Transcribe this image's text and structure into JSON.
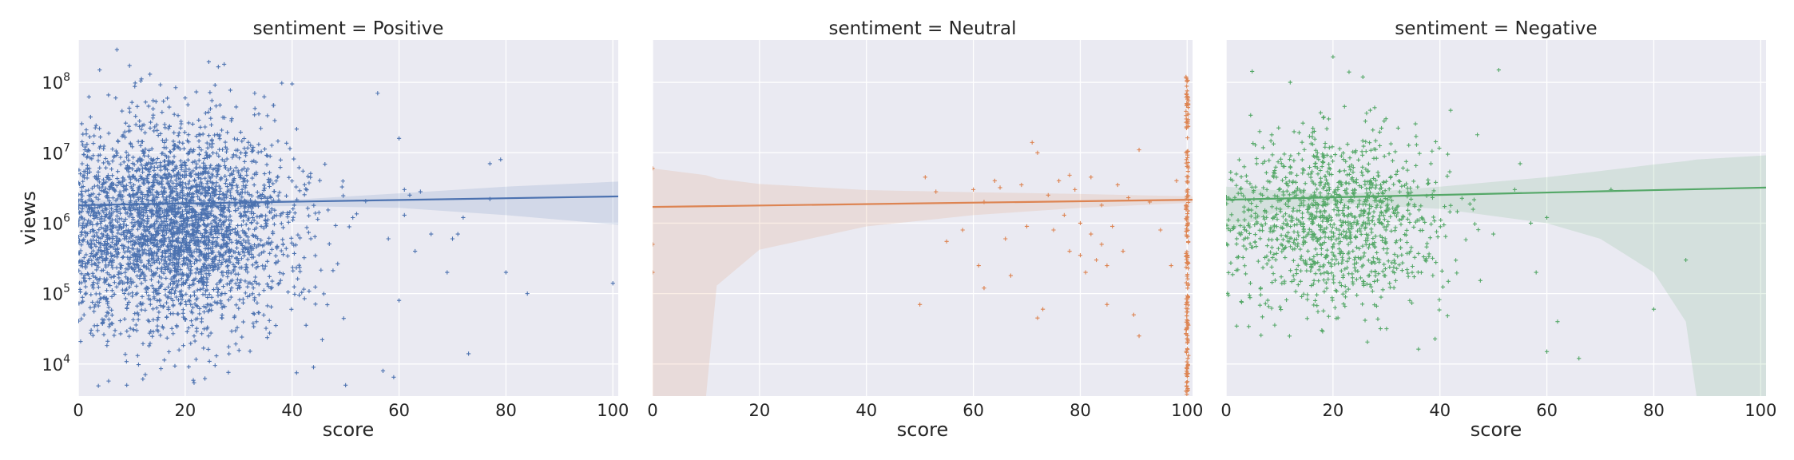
{
  "chart_data": {
    "type": "scatter",
    "style": "seaborn-darkgrid lmplot facets, plus-sign markers with linear regression line and confidence band",
    "xlabel": "score",
    "ylabel": "views",
    "xlim": [
      0,
      101
    ],
    "ylim": [
      3500,
      400000000
    ],
    "yscale": "log",
    "xticks": [
      0,
      20,
      40,
      60,
      80,
      100
    ],
    "xtick_labels": [
      "0",
      "20",
      "40",
      "60",
      "80",
      "100"
    ],
    "yticks": [
      {
        "value": 10000,
        "base": "10",
        "exp": "4"
      },
      {
        "value": 100000,
        "base": "10",
        "exp": "5"
      },
      {
        "value": 1000000,
        "base": "10",
        "exp": "6"
      },
      {
        "value": 10000000,
        "base": "10",
        "exp": "7"
      },
      {
        "value": 100000000,
        "base": "10",
        "exp": "8"
      }
    ],
    "grid": true,
    "colors": {
      "background": "#EAEAF2",
      "grid": "#FFFFFF",
      "Positive": "#4C72B0",
      "Neutral": "#DD8452",
      "Negative": "#55A868"
    },
    "panels": [
      {
        "title": "sentiment = Positive",
        "series": "Positive",
        "color": "#4C72B0",
        "regression": [
          {
            "x": 0,
            "y": 1800000
          },
          {
            "x": 101,
            "y": 2400000
          }
        ],
        "ci_band": [
          {
            "x": 0,
            "lo": 1500000,
            "hi": 2150000
          },
          {
            "x": 20,
            "lo": 1680000,
            "hi": 2020000
          },
          {
            "x": 40,
            "lo": 1750000,
            "hi": 2150000
          },
          {
            "x": 60,
            "lo": 1650000,
            "hi": 2650000
          },
          {
            "x": 80,
            "lo": 1300000,
            "hi": 3300000
          },
          {
            "x": 101,
            "lo": 950000,
            "hi": 3900000
          }
        ],
        "cloud": {
          "count": 3200,
          "x_center": 18,
          "x_spread": 11,
          "x_min": 0,
          "x_max": 56,
          "log_y_center": 5.95,
          "log_y_spread": 0.72
        },
        "points": [
          {
            "x": 4,
            "y": 150000000
          },
          {
            "x": 7,
            "y": 60000000
          },
          {
            "x": 14,
            "y": 55000000
          },
          {
            "x": 20,
            "y": 60000000
          },
          {
            "x": 25,
            "y": 55000000
          },
          {
            "x": 33,
            "y": 70000000
          },
          {
            "x": 40,
            "y": 95000000
          },
          {
            "x": 56,
            "y": 70000000
          },
          {
            "x": 60,
            "y": 16000000
          },
          {
            "x": 61,
            "y": 3000000
          },
          {
            "x": 62,
            "y": 2500000
          },
          {
            "x": 64,
            "y": 2800000
          },
          {
            "x": 66,
            "y": 700000
          },
          {
            "x": 69,
            "y": 200000
          },
          {
            "x": 70,
            "y": 600000
          },
          {
            "x": 71,
            "y": 700000
          },
          {
            "x": 72,
            "y": 1200000
          },
          {
            "x": 73,
            "y": 14000
          },
          {
            "x": 77,
            "y": 7000000
          },
          {
            "x": 77,
            "y": 2200000
          },
          {
            "x": 79,
            "y": 8000000
          },
          {
            "x": 80,
            "y": 200000
          },
          {
            "x": 84,
            "y": 100000
          },
          {
            "x": 100,
            "y": 140000
          },
          {
            "x": 57,
            "y": 8000
          },
          {
            "x": 59,
            "y": 6500
          },
          {
            "x": 50,
            "y": 5000
          },
          {
            "x": 44,
            "y": 9000
          },
          {
            "x": 58,
            "y": 600000
          },
          {
            "x": 60,
            "y": 80000
          },
          {
            "x": 63,
            "y": 400000
          },
          {
            "x": 61,
            "y": 1300000
          }
        ]
      },
      {
        "title": "sentiment = Neutral",
        "series": "Neutral",
        "color": "#DD8452",
        "regression": [
          {
            "x": 0,
            "y": 1700000
          },
          {
            "x": 101,
            "y": 2150000
          }
        ],
        "ci_band": [
          {
            "x": 0,
            "lo": 3500,
            "hi": 6000000
          },
          {
            "x": 10,
            "lo": 3500,
            "hi": 4800000
          },
          {
            "x": 12,
            "lo": 130000,
            "hi": 4300000
          },
          {
            "x": 20,
            "lo": 420000,
            "hi": 3600000
          },
          {
            "x": 40,
            "lo": 900000,
            "hi": 2950000
          },
          {
            "x": 60,
            "lo": 1300000,
            "hi": 2750000
          },
          {
            "x": 80,
            "lo": 1650000,
            "hi": 2600000
          },
          {
            "x": 101,
            "lo": 1950000,
            "hi": 2400000
          }
        ],
        "cloud": {
          "count": 0
        },
        "column": {
          "x": 100,
          "count": 180,
          "log_y_min": 3.55,
          "log_y_max": 8.1
        },
        "points": [
          {
            "x": 0,
            "y": 6000000
          },
          {
            "x": 0,
            "y": 500000
          },
          {
            "x": 0,
            "y": 200000
          },
          {
            "x": 50,
            "y": 70000
          },
          {
            "x": 51,
            "y": 4500000
          },
          {
            "x": 53,
            "y": 2800000
          },
          {
            "x": 55,
            "y": 550000
          },
          {
            "x": 58,
            "y": 800000
          },
          {
            "x": 60,
            "y": 3000000
          },
          {
            "x": 61,
            "y": 250000
          },
          {
            "x": 62,
            "y": 2000000
          },
          {
            "x": 62,
            "y": 120000
          },
          {
            "x": 64,
            "y": 4000000
          },
          {
            "x": 65,
            "y": 3200000
          },
          {
            "x": 66,
            "y": 600000
          },
          {
            "x": 67,
            "y": 180000
          },
          {
            "x": 69,
            "y": 3500000
          },
          {
            "x": 70,
            "y": 900000
          },
          {
            "x": 71,
            "y": 14000000
          },
          {
            "x": 72,
            "y": 10000000
          },
          {
            "x": 72,
            "y": 45000
          },
          {
            "x": 73,
            "y": 60000
          },
          {
            "x": 74,
            "y": 2500000
          },
          {
            "x": 75,
            "y": 800000
          },
          {
            "x": 76,
            "y": 4000000
          },
          {
            "x": 77,
            "y": 1300000
          },
          {
            "x": 78,
            "y": 400000
          },
          {
            "x": 78,
            "y": 4800000
          },
          {
            "x": 79,
            "y": 3000000
          },
          {
            "x": 80,
            "y": 1000000
          },
          {
            "x": 80,
            "y": 350000
          },
          {
            "x": 81,
            "y": 200000
          },
          {
            "x": 82,
            "y": 4500000
          },
          {
            "x": 82,
            "y": 700000
          },
          {
            "x": 83,
            "y": 300000
          },
          {
            "x": 84,
            "y": 500000
          },
          {
            "x": 84,
            "y": 1800000
          },
          {
            "x": 85,
            "y": 250000
          },
          {
            "x": 85,
            "y": 70000
          },
          {
            "x": 86,
            "y": 900000
          },
          {
            "x": 87,
            "y": 3500000
          },
          {
            "x": 88,
            "y": 400000
          },
          {
            "x": 89,
            "y": 2300000
          },
          {
            "x": 90,
            "y": 50000
          },
          {
            "x": 91,
            "y": 11000000
          },
          {
            "x": 91,
            "y": 25000
          },
          {
            "x": 93,
            "y": 2000000
          },
          {
            "x": 95,
            "y": 800000
          },
          {
            "x": 98,
            "y": 4000000
          },
          {
            "x": 97,
            "y": 250000
          }
        ]
      },
      {
        "title": "sentiment = Negative",
        "series": "Negative",
        "color": "#55A868",
        "regression": [
          {
            "x": 0,
            "y": 2150000
          },
          {
            "x": 101,
            "y": 3200000
          }
        ],
        "ci_band": [
          {
            "x": 0,
            "lo": 750000,
            "hi": 3300000
          },
          {
            "x": 10,
            "lo": 1500000,
            "hi": 2900000
          },
          {
            "x": 20,
            "lo": 1900000,
            "hi": 2500000
          },
          {
            "x": 40,
            "lo": 1600000,
            "hi": 3300000
          },
          {
            "x": 60,
            "lo": 1000000,
            "hi": 4500000
          },
          {
            "x": 70,
            "lo": 600000,
            "hi": 5500000
          },
          {
            "x": 80,
            "lo": 200000,
            "hi": 6800000
          },
          {
            "x": 86,
            "lo": 40000,
            "hi": 7600000
          },
          {
            "x": 88,
            "lo": 3500,
            "hi": 8000000
          },
          {
            "x": 101,
            "lo": 3500,
            "hi": 9200000
          }
        ],
        "cloud": {
          "count": 1200,
          "x_center": 20,
          "x_spread": 10,
          "x_min": 0,
          "x_max": 48,
          "log_y_center": 6.05,
          "log_y_spread": 0.62
        },
        "points": [
          {
            "x": 20,
            "y": 230000000
          },
          {
            "x": 23,
            "y": 140000000
          },
          {
            "x": 51,
            "y": 150000000
          },
          {
            "x": 12,
            "y": 100000000
          },
          {
            "x": 42,
            "y": 40000000
          },
          {
            "x": 47,
            "y": 18000000
          },
          {
            "x": 55,
            "y": 7000000
          },
          {
            "x": 57,
            "y": 1000000
          },
          {
            "x": 60,
            "y": 1200000
          },
          {
            "x": 62,
            "y": 40000
          },
          {
            "x": 60,
            "y": 15000
          },
          {
            "x": 66,
            "y": 12000
          },
          {
            "x": 72,
            "y": 3000000
          },
          {
            "x": 80,
            "y": 60000
          },
          {
            "x": 86,
            "y": 300000
          },
          {
            "x": 58,
            "y": 200000
          },
          {
            "x": 54,
            "y": 3000000
          },
          {
            "x": 50,
            "y": 700000
          }
        ]
      }
    ]
  }
}
